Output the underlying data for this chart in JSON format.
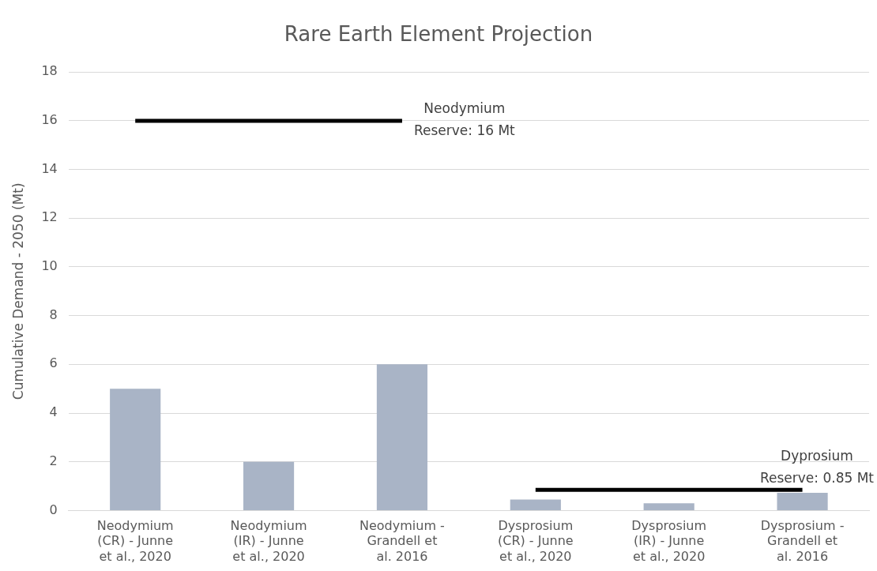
{
  "chart_data": {
    "type": "bar",
    "title": "Rare Earth Element Projection",
    "ylabel": "Cumulative Demand - 2050 (Mt)",
    "categories": [
      "Neodymium (CR) - Junne et al., 2020",
      "Neodymium (IR) - Junne et al., 2020",
      "Neodymium - Grandell et al. 2016",
      "Dysprosium (CR) - Junne et al., 2020",
      "Dysprosium (IR) - Junne et al., 2020",
      "Dysprosium - Grandell et al. 2016"
    ],
    "series": [
      {
        "color": "#a9b4c6",
        "values": [
          5,
          2,
          6,
          0.45,
          0.3,
          0.73
        ]
      },
      {
        "type": "line",
        "color": "#000000",
        "values": [
          16,
          16,
          16,
          null,
          null,
          null
        ]
      },
      {
        "type": "line",
        "color": "#000000",
        "values": [
          null,
          null,
          null,
          0.85,
          0.85,
          0.85
        ]
      }
    ],
    "ylim": [
      0,
      18
    ],
    "yticks": [
      0,
      2,
      4,
      6,
      8,
      10,
      12,
      14,
      16,
      18
    ],
    "grid": "y",
    "legend": false,
    "marker": "none",
    "annotations": [
      {
        "text": "Neodymium Reserve: 16 Mt",
        "x": "Neodymium - Grandell et al. 2016",
        "y": 16
      },
      {
        "text": "Dyprosium Reserve: 0.85 Mt",
        "x": "Dysprosium - Grandell et al. 2016",
        "y": 0.85
      }
    ]
  }
}
